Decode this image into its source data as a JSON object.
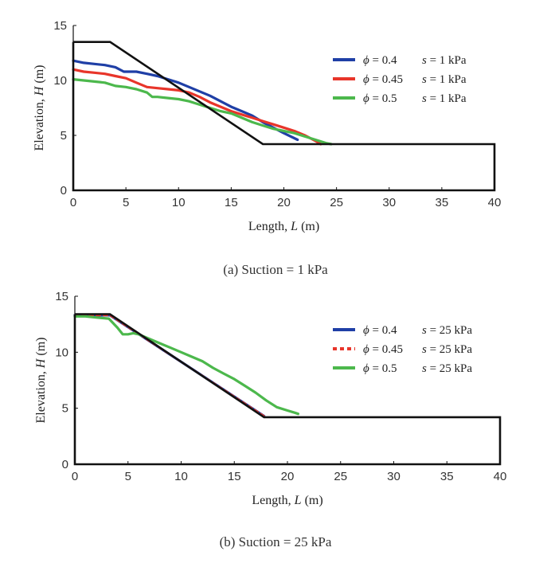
{
  "chart_data": [
    {
      "type": "line",
      "caption": "(a) Suction = 1 kPa",
      "xlabel_main": "Length, ",
      "xlabel_var": "L",
      "xlabel_unit": " (m)",
      "ylabel_main": "Elevation, ",
      "ylabel_var": "H",
      "ylabel_unit": " (m)",
      "xlim": [
        0,
        40
      ],
      "ylim": [
        0,
        15
      ],
      "xticks": [
        "0",
        "5",
        "10",
        "15",
        "20",
        "25",
        "30",
        "35",
        "40"
      ],
      "yticks": [
        "0",
        "5",
        "10",
        "15"
      ],
      "grid": false,
      "legend_position": "top-right",
      "slope_profile": {
        "color": "#111111",
        "x": [
          0,
          3.5,
          18,
          40,
          40,
          0,
          0
        ],
        "y": [
          13.5,
          13.5,
          4.2,
          4.2,
          0,
          0,
          13.5
        ]
      },
      "series": [
        {
          "phi_label": "= 0.4",
          "s_label": "s",
          "s_value": " = 1 kPa",
          "color": "#1f3fa6",
          "x": [
            0,
            1,
            2,
            3,
            4,
            4.8,
            6,
            7,
            8,
            9,
            10,
            11,
            12,
            13,
            14,
            15,
            16,
            17,
            18,
            19,
            20,
            21.3
          ],
          "y": [
            11.8,
            11.6,
            11.5,
            11.4,
            11.2,
            10.8,
            10.8,
            10.6,
            10.4,
            10.1,
            9.8,
            9.4,
            9.0,
            8.6,
            8.1,
            7.6,
            7.2,
            6.8,
            6.2,
            5.7,
            5.2,
            4.6
          ]
        },
        {
          "phi_label": "= 0.45",
          "s_label": "s",
          "s_value": " = 1 kPa",
          "color": "#e8352a",
          "x": [
            0,
            1,
            2,
            3,
            4,
            5,
            6,
            7,
            8,
            9,
            10,
            11,
            12,
            13,
            14,
            15,
            16,
            17,
            18,
            19,
            20,
            21,
            22,
            23,
            23.5
          ],
          "y": [
            11.0,
            10.8,
            10.7,
            10.6,
            10.4,
            10.2,
            9.8,
            9.4,
            9.3,
            9.2,
            9.1,
            8.9,
            8.5,
            8.0,
            7.6,
            7.2,
            6.9,
            6.6,
            6.3,
            6.0,
            5.7,
            5.4,
            5.0,
            4.5,
            4.2
          ]
        },
        {
          "phi_label": "= 0.5",
          "s_label": "s",
          "s_value": " = 1 kPa",
          "color": "#4cb84c",
          "x": [
            0,
            1,
            2,
            3,
            4,
            5,
            6,
            7,
            7.5,
            8,
            9,
            10,
            11,
            12,
            13,
            14,
            15,
            16,
            17,
            18,
            19,
            20,
            21,
            22,
            23,
            24,
            24.5
          ],
          "y": [
            10.1,
            10.0,
            9.9,
            9.8,
            9.5,
            9.4,
            9.2,
            8.9,
            8.5,
            8.5,
            8.4,
            8.3,
            8.1,
            7.8,
            7.5,
            7.2,
            7.0,
            6.6,
            6.2,
            5.9,
            5.6,
            5.4,
            5.2,
            4.9,
            4.6,
            4.3,
            4.2
          ]
        }
      ]
    },
    {
      "type": "line",
      "caption": "(b) Suction = 25 kPa",
      "xlabel_main": "Length, ",
      "xlabel_var": "L",
      "xlabel_unit": " (m)",
      "ylabel_main": "Elevation, ",
      "ylabel_var": "H",
      "ylabel_unit": " (m)",
      "xlim": [
        0,
        40
      ],
      "ylim": [
        0,
        15
      ],
      "xticks": [
        "0",
        "5",
        "10",
        "15",
        "20",
        "25",
        "30",
        "35",
        "40"
      ],
      "yticks": [
        "0",
        "5",
        "10",
        "15"
      ],
      "grid": false,
      "legend_position": "top-right",
      "slope_profile": {
        "color": "#111111",
        "x": [
          0,
          3.3,
          17.8,
          40,
          40,
          0,
          0
        ],
        "y": [
          13.4,
          13.4,
          4.2,
          4.2,
          0,
          0,
          13.4
        ]
      },
      "series": [
        {
          "phi_label": "= 0.4",
          "s_label": "s",
          "s_value": " = 25 kPa",
          "color": "#1f3fa6",
          "x": [
            0,
            3.3,
            17.8
          ],
          "y": [
            13.3,
            13.3,
            4.3
          ]
        },
        {
          "phi_label": "= 0.45",
          "s_label": "s",
          "s_value": " = 25 kPa",
          "color": "#e8352a",
          "dashed": true,
          "x": [
            0,
            3.3,
            17.8
          ],
          "y": [
            13.3,
            13.3,
            4.3
          ]
        },
        {
          "phi_label": "= 0.5",
          "s_label": "s",
          "s_value": " = 25 kPa",
          "color": "#4cb84c",
          "x": [
            0,
            1,
            2,
            3.2,
            4,
            4.5,
            5,
            5.5,
            6,
            7,
            8,
            9,
            10,
            11,
            12,
            13,
            14,
            15,
            16,
            17,
            18,
            19,
            20,
            20.7,
            21
          ],
          "y": [
            13.2,
            13.2,
            13.1,
            13.0,
            12.2,
            11.6,
            11.6,
            11.7,
            11.6,
            11.2,
            10.8,
            10.4,
            10.0,
            9.6,
            9.2,
            8.6,
            8.1,
            7.6,
            7.0,
            6.4,
            5.7,
            5.1,
            4.8,
            4.6,
            4.5
          ]
        }
      ]
    }
  ]
}
